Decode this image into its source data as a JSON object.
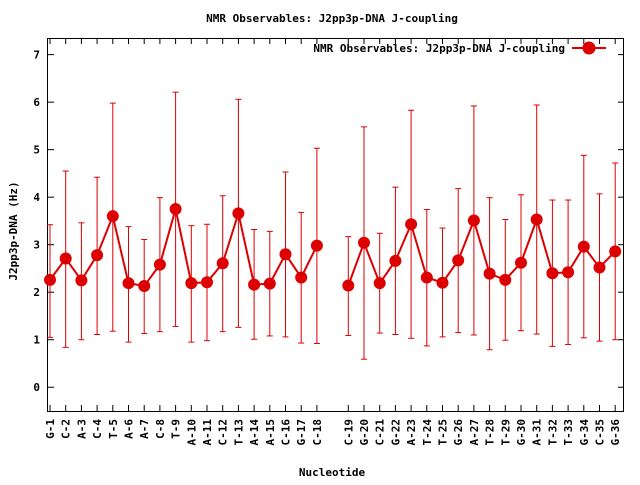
{
  "chart_data": {
    "type": "line",
    "title": "NMR Observables: J2pp3p-DNA J-coupling",
    "xlabel": "Nucleotide",
    "ylabel": "J2pp3p-DNA (Hz)",
    "ylim": [
      -0.5,
      7.35
    ],
    "yticks": [
      "0",
      "1",
      "2",
      "3",
      "4",
      "5",
      "6",
      "7"
    ],
    "grid": false,
    "legend_position": "top-right",
    "series": [
      {
        "name": "NMR Observables: J2pp3p-DNA J-coupling",
        "color": "#dd0000",
        "segments": [
          [
            {
              "label": "G-1",
              "y": 2.26,
              "ylow": 1.05,
              "yhigh": 3.42
            },
            {
              "label": "C-2",
              "y": 2.71,
              "ylow": 0.84,
              "yhigh": 4.55
            },
            {
              "label": "A-3",
              "y": 2.25,
              "ylow": 1.0,
              "yhigh": 3.46
            },
            {
              "label": "C-4",
              "y": 2.78,
              "ylow": 1.11,
              "yhigh": 4.42
            },
            {
              "label": "T-5",
              "y": 3.6,
              "ylow": 1.18,
              "yhigh": 5.98
            },
            {
              "label": "A-6",
              "y": 2.19,
              "ylow": 0.95,
              "yhigh": 3.38
            },
            {
              "label": "A-7",
              "y": 2.13,
              "ylow": 1.13,
              "yhigh": 3.11
            },
            {
              "label": "C-8",
              "y": 2.58,
              "ylow": 1.17,
              "yhigh": 3.99
            },
            {
              "label": "T-9",
              "y": 3.75,
              "ylow": 1.28,
              "yhigh": 6.21
            },
            {
              "label": "A-10",
              "y": 2.19,
              "ylow": 0.95,
              "yhigh": 3.4
            },
            {
              "label": "A-11",
              "y": 2.21,
              "ylow": 0.98,
              "yhigh": 3.43
            },
            {
              "label": "C-12",
              "y": 2.61,
              "ylow": 1.17,
              "yhigh": 4.03
            },
            {
              "label": "T-13",
              "y": 3.66,
              "ylow": 1.26,
              "yhigh": 6.06
            },
            {
              "label": "A-14",
              "y": 2.16,
              "ylow": 1.01,
              "yhigh": 3.32
            },
            {
              "label": "A-15",
              "y": 2.18,
              "ylow": 1.08,
              "yhigh": 3.28
            },
            {
              "label": "C-16",
              "y": 2.8,
              "ylow": 1.06,
              "yhigh": 4.53
            },
            {
              "label": "G-17",
              "y": 2.31,
              "ylow": 0.93,
              "yhigh": 3.68
            },
            {
              "label": "C-18",
              "y": 2.98,
              "ylow": 0.92,
              "yhigh": 5.03
            }
          ],
          [
            {
              "label": "C-19",
              "y": 2.14,
              "ylow": 1.09,
              "yhigh": 3.17
            },
            {
              "label": "G-20",
              "y": 3.04,
              "ylow": 0.59,
              "yhigh": 5.48
            },
            {
              "label": "C-21",
              "y": 2.19,
              "ylow": 1.14,
              "yhigh": 3.24
            },
            {
              "label": "G-22",
              "y": 2.66,
              "ylow": 1.11,
              "yhigh": 4.21
            },
            {
              "label": "A-23",
              "y": 3.43,
              "ylow": 1.03,
              "yhigh": 5.83
            },
            {
              "label": "T-24",
              "y": 2.31,
              "ylow": 0.87,
              "yhigh": 3.74
            },
            {
              "label": "T-25",
              "y": 2.2,
              "ylow": 1.06,
              "yhigh": 3.35
            },
            {
              "label": "G-26",
              "y": 2.67,
              "ylow": 1.15,
              "yhigh": 4.18
            },
            {
              "label": "A-27",
              "y": 3.51,
              "ylow": 1.1,
              "yhigh": 5.92
            },
            {
              "label": "T-28",
              "y": 2.39,
              "ylow": 0.79,
              "yhigh": 3.99
            },
            {
              "label": "T-29",
              "y": 2.26,
              "ylow": 0.99,
              "yhigh": 3.53
            },
            {
              "label": "G-30",
              "y": 2.62,
              "ylow": 1.19,
              "yhigh": 4.05
            },
            {
              "label": "A-31",
              "y": 3.53,
              "ylow": 1.12,
              "yhigh": 5.94
            },
            {
              "label": "T-32",
              "y": 2.4,
              "ylow": 0.86,
              "yhigh": 3.94
            },
            {
              "label": "T-33",
              "y": 2.42,
              "ylow": 0.9,
              "yhigh": 3.94
            },
            {
              "label": "G-34",
              "y": 2.96,
              "ylow": 1.04,
              "yhigh": 4.88
            },
            {
              "label": "C-35",
              "y": 2.52,
              "ylow": 0.97,
              "yhigh": 4.07
            },
            {
              "label": "G-36",
              "y": 2.86,
              "ylow": 1.0,
              "yhigh": 4.72
            }
          ]
        ]
      }
    ]
  }
}
